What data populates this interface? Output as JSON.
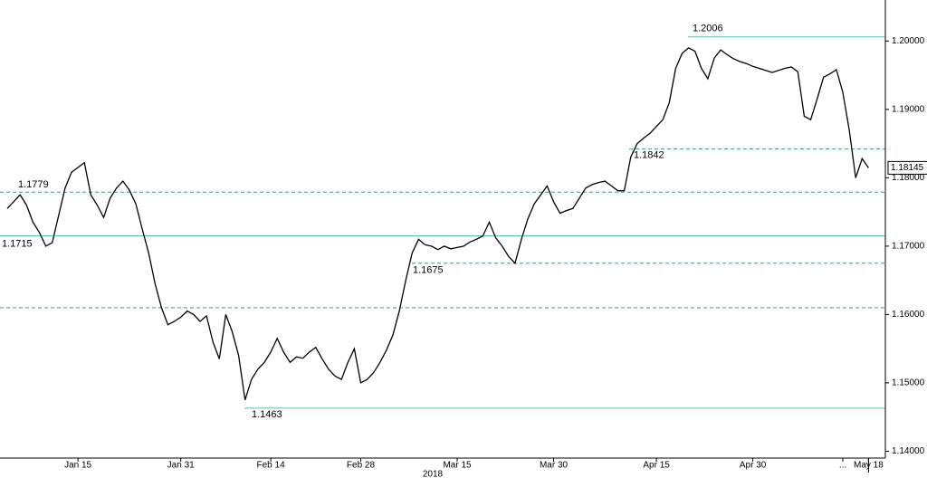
{
  "chart_data": {
    "type": "line",
    "categories": [
      null,
      null,
      null,
      null,
      null,
      null,
      null,
      null,
      null,
      null,
      null,
      "Jan 15",
      null,
      null,
      null,
      null,
      null,
      null,
      null,
      null,
      null,
      null,
      null,
      null,
      null,
      null,
      null,
      "Jan 31",
      null,
      null,
      null,
      null,
      null,
      null,
      null,
      null,
      null,
      null,
      null,
      null,
      null,
      "Feb 14",
      null,
      null,
      null,
      null,
      null,
      null,
      null,
      null,
      null,
      null,
      null,
      null,
      null,
      "Feb 28",
      null,
      null,
      null,
      null,
      null,
      null,
      null,
      null,
      null,
      null,
      null,
      null,
      null,
      null,
      "Mar 15",
      null,
      null,
      null,
      null,
      null,
      null,
      null,
      null,
      null,
      null,
      null,
      null,
      null,
      null,
      "Mar 30",
      null,
      null,
      null,
      null,
      null,
      null,
      null,
      null,
      null,
      null,
      null,
      null,
      null,
      null,
      null,
      "Apr 15",
      null,
      null,
      null,
      null,
      null,
      null,
      null,
      null,
      null,
      null,
      null,
      null,
      null,
      null,
      "Apr 30",
      null,
      null,
      null,
      null,
      null,
      null,
      null,
      null,
      null,
      null,
      null,
      null,
      null,
      "...",
      null,
      null,
      null,
      "May 18"
    ],
    "x_year_label": "2018",
    "series": [
      {
        "color": "#000000",
        "values": [
          1.1755,
          1.1765,
          1.1775,
          1.176,
          1.1735,
          1.172,
          1.17,
          1.1705,
          1.1745,
          1.1785,
          1.1808,
          1.1815,
          1.1822,
          1.1775,
          1.176,
          1.1742,
          1.177,
          1.1785,
          1.1795,
          1.1782,
          1.1762,
          1.1725,
          1.169,
          1.1645,
          1.161,
          1.1585,
          1.159,
          1.1596,
          1.1605,
          1.16,
          1.159,
          1.1598,
          1.156,
          1.1535,
          1.16,
          1.1575,
          1.154,
          1.1475,
          1.1505,
          1.152,
          1.153,
          1.1545,
          1.1565,
          1.1545,
          1.153,
          1.1538,
          1.1536,
          1.1545,
          1.1552,
          1.1535,
          1.152,
          1.151,
          1.1505,
          1.153,
          1.155,
          1.15,
          1.1505,
          1.1515,
          1.153,
          1.1548,
          1.157,
          1.1605,
          1.165,
          1.169,
          1.171,
          1.1702,
          1.17,
          1.1695,
          1.17,
          1.1696,
          1.1698,
          1.17,
          1.1706,
          1.171,
          1.1715,
          1.1735,
          1.1712,
          1.17,
          1.1685,
          1.1675,
          1.171,
          1.174,
          1.1762,
          1.1775,
          1.1788,
          1.1765,
          1.1748,
          1.1752,
          1.1755,
          1.177,
          1.1785,
          1.179,
          1.1793,
          1.1795,
          1.1788,
          1.1781,
          1.1781,
          1.183,
          1.185,
          1.1858,
          1.1865,
          1.1875,
          1.1885,
          1.191,
          1.196,
          1.1982,
          1.199,
          1.1985,
          1.196,
          1.1945,
          1.1975,
          1.1987,
          1.198,
          1.1974,
          1.197,
          1.1967,
          1.1963,
          1.196,
          1.1957,
          1.1954,
          1.1957,
          1.196,
          1.1962,
          1.1955,
          1.189,
          1.1885,
          1.1915,
          1.1947,
          1.1952,
          1.1958,
          1.1925,
          1.187,
          1.18,
          1.1828,
          1.18145
        ],
        "value_labels": {
          "134": "1.18145"
        }
      }
    ],
    "ylim": [
      1.139,
      1.206
    ],
    "yticks": [
      {
        "value": 1.14,
        "label": "1.14000"
      },
      {
        "value": 1.15,
        "label": "1.15000"
      },
      {
        "value": 1.16,
        "label": "1.16000"
      },
      {
        "value": 1.17,
        "label": "1.17000"
      },
      {
        "value": 1.18,
        "label": "1.18000"
      },
      {
        "value": 1.19,
        "label": "1.19000"
      },
      {
        "value": 1.2,
        "label": "1.20000"
      }
    ],
    "reference_lines": [
      {
        "value": 1.2006,
        "dashed": false,
        "color": "#5bbfae"
      },
      {
        "value": 1.1842,
        "dashed": true,
        "color": "#3a9a8a"
      },
      {
        "value": 1.1779,
        "dashed": true,
        "color": "#3a9a8a"
      },
      {
        "value": 1.1715,
        "dashed": false,
        "color": "#5bbfae"
      },
      {
        "value": 1.1675,
        "dashed": true,
        "color": "#3a9a8a"
      },
      {
        "value": 1.161,
        "dashed": true,
        "color": "#3a9a8a"
      },
      {
        "value": 1.1463,
        "dashed": false,
        "color": "#5bbfae"
      }
    ],
    "annotations": [
      1.2006,
      1.1842,
      1.1779,
      1.1715,
      1.1675,
      1.1463
    ]
  }
}
